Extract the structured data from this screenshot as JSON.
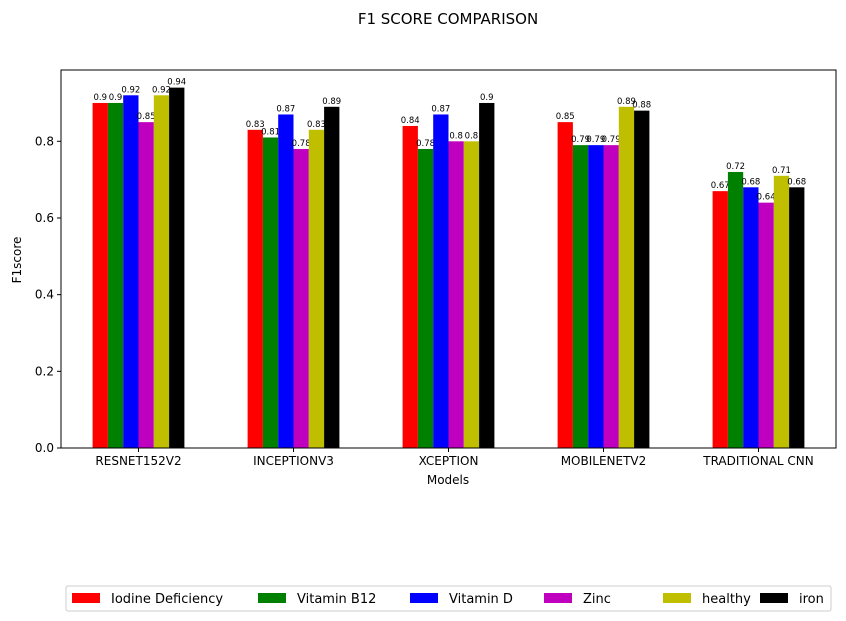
{
  "chart_data": {
    "type": "bar",
    "title": "F1 SCORE COMPARISON",
    "xlabel": "Models",
    "ylabel": "F1score",
    "ylim": [
      0,
      0.986
    ],
    "yticks": [
      0.0,
      0.2,
      0.4,
      0.6,
      0.8
    ],
    "ytick_labels": [
      "0.0",
      "0.2",
      "0.4",
      "0.6",
      "0.8"
    ],
    "categories": [
      "RESNET152V2",
      "INCEPTIONV3",
      "XCEPTION",
      "MOBILENETV2",
      "TRADITIONAL CNN"
    ],
    "series": [
      {
        "name": "Iodine Deficiency",
        "color": "#ff0000",
        "values": [
          0.9,
          0.83,
          0.84,
          0.85,
          0.67
        ],
        "labels": [
          "0.9",
          "0.83",
          "0.84",
          "0.85",
          "0.67"
        ]
      },
      {
        "name": "Vitamin B12",
        "color": "#008000",
        "values": [
          0.9,
          0.81,
          0.78,
          0.79,
          0.72
        ],
        "labels": [
          "0.9",
          "0.81",
          "0.78",
          "0.79",
          "0.72"
        ]
      },
      {
        "name": "Vitamin D",
        "color": "#0000ff",
        "values": [
          0.92,
          0.87,
          0.87,
          0.79,
          0.68
        ],
        "labels": [
          "0.92",
          "0.87",
          "0.87",
          "0.79",
          "0.68"
        ]
      },
      {
        "name": "Zinc",
        "color": "#bf00bf",
        "values": [
          0.85,
          0.78,
          0.8,
          0.79,
          0.64
        ],
        "labels": [
          "0.85",
          "0.78",
          "0.8",
          "0.79",
          "0.64"
        ]
      },
      {
        "name": "healthy",
        "color": "#bfbf00",
        "values": [
          0.92,
          0.83,
          0.8,
          0.89,
          0.71
        ],
        "labels": [
          "0.92",
          "0.83",
          "0.8",
          "0.89",
          "0.71"
        ]
      },
      {
        "name": "iron",
        "color": "#000000",
        "values": [
          0.94,
          0.89,
          0.9,
          0.88,
          0.68
        ],
        "labels": [
          "0.94",
          "0.89",
          "0.9",
          "0.88",
          "0.68"
        ]
      }
    ],
    "grid": false,
    "legend_position": "bottom-center"
  }
}
